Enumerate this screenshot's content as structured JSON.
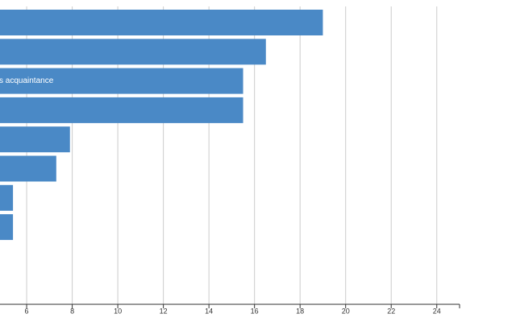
{
  "chart_data": {
    "type": "hbar",
    "categories": [
      null,
      null,
      "s acquaintance",
      null,
      null,
      null,
      null,
      null
    ],
    "values": [
      19,
      16.5,
      15.5,
      15.5,
      7.9,
      7.3,
      5.4,
      5.4
    ],
    "color": "#4a89c6",
    "xlim": [
      0,
      25
    ],
    "xticks": [
      6,
      8,
      10,
      12,
      14,
      16,
      18,
      20,
      22,
      24
    ],
    "grid": true
  }
}
